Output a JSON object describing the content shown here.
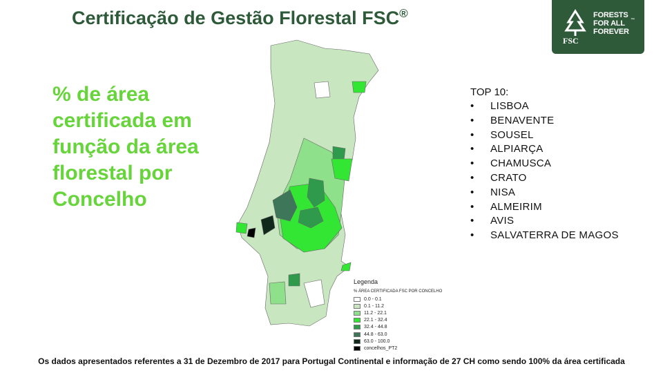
{
  "header": {
    "title": "Certificação de Gestão Florestal FSC",
    "title_mark": "®"
  },
  "logo": {
    "lines": [
      "FORESTS",
      "FOR ALL",
      "FOREVER"
    ],
    "brand": "FSC",
    "trademark": "™"
  },
  "heading": {
    "lines": [
      "% de área",
      "certificada em",
      "função da área",
      "florestal por",
      "Concelho"
    ]
  },
  "top10": {
    "title": "TOP 10:",
    "items": [
      "LISBOA",
      "BENAVENTE",
      "SOUSEL",
      "ALPIARÇA",
      "CHAMUSCA",
      "CRATO",
      "NISA",
      "ALMEIRIM",
      "AVIS",
      "SALVATERRA DE MAGOS"
    ]
  },
  "legend": {
    "title": "Legenda",
    "header": "% ÁREA CERTIFICADA FSC POR CONCELHO",
    "items": [
      {
        "label": "0.0 - 0.1",
        "color": "#ffffff"
      },
      {
        "label": "0.1 - 11.2",
        "color": "#c8e6c0"
      },
      {
        "label": "11.2 - 22.1",
        "color": "#8fe08a"
      },
      {
        "label": "22.1 - 32.4",
        "color": "#33e633"
      },
      {
        "label": "32.4 - 44.8",
        "color": "#2f9a4c"
      },
      {
        "label": "44.8 - 63.0",
        "color": "#3e7659"
      },
      {
        "label": "63.0 - 100.0",
        "color": "#10291a"
      },
      {
        "label": "concelhos_PT2",
        "color": "#000000"
      }
    ]
  },
  "footer": {
    "text": "Os dados apresentados referentes a 31 de Dezembro de 2017 para Portugal Continental e informação de 27 CH como sendo 100% da área certificada"
  }
}
